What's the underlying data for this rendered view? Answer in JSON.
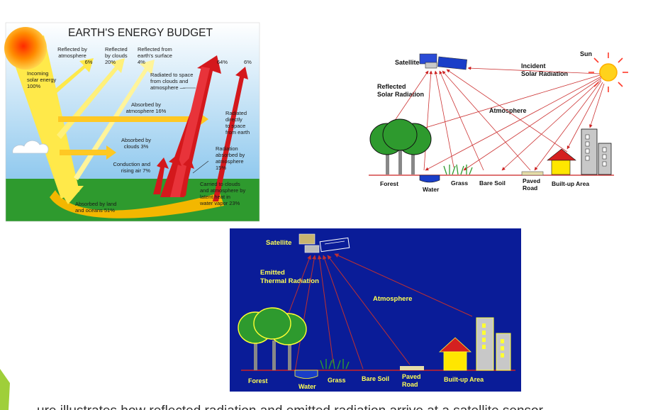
{
  "budget": {
    "title": "EARTH'S ENERGY BUDGET",
    "incoming": [
      "Incoming",
      "solar energy",
      "100%"
    ],
    "refl_atmos": [
      "Reflected by",
      "atmosphere",
      "6%"
    ],
    "refl_clouds": [
      "Reflected",
      "by clouds",
      "20%"
    ],
    "refl_surface": [
      "Reflected from",
      "earth's surface",
      "4%"
    ],
    "pct_64": "64%",
    "pct_6": "6%",
    "radiated_space": [
      "Radiated to space",
      "from clouds and",
      "atmosphere —"
    ],
    "radiated_direct": [
      "Radiated",
      "directly",
      "to space",
      "from earth"
    ],
    "absorbed_atmos": [
      "Absorbed by",
      "atmosphere 16%"
    ],
    "absorbed_clouds": [
      "Absorbed by",
      "clouds 3%"
    ],
    "radiation_absorbed": [
      "Radiation",
      "absorbed by",
      "atmosphere",
      "15%"
    ],
    "conduction": [
      "Conduction and",
      "rising air 7%"
    ],
    "carried": [
      "Carried to clouds",
      "and atmosphere by",
      "latent heat in",
      "water vapor 23%"
    ],
    "absorbed_land": [
      "Absorbed by land",
      "and oceans 51%"
    ]
  },
  "reflected": {
    "satellite": "Satellite",
    "sun": "Sun",
    "incident": [
      "Incident",
      "Solar Radiation"
    ],
    "reflected": [
      "Reflected",
      "Solar Radiation"
    ],
    "atmosphere": "Atmosphere",
    "forest": "Forest",
    "water": "Water",
    "grass": "Grass",
    "bare_soil": "Bare Soil",
    "paved_road": [
      "Paved",
      "Road"
    ],
    "built_up": "Built-up Area"
  },
  "thermal": {
    "satellite": "Satellite",
    "emitted": [
      "Emitted",
      "Thermal Radiation"
    ],
    "atmosphere": "Atmosphere",
    "forest": "Forest",
    "water": "Water",
    "grass": "Grass",
    "bare_soil": "Bare Soil",
    "paved_road": [
      "Paved",
      "Road"
    ],
    "built_up": "Built-up Area"
  },
  "caption": "ure illustrates how reflected radiation and emitted radiation arrive at a satellite sensor"
}
